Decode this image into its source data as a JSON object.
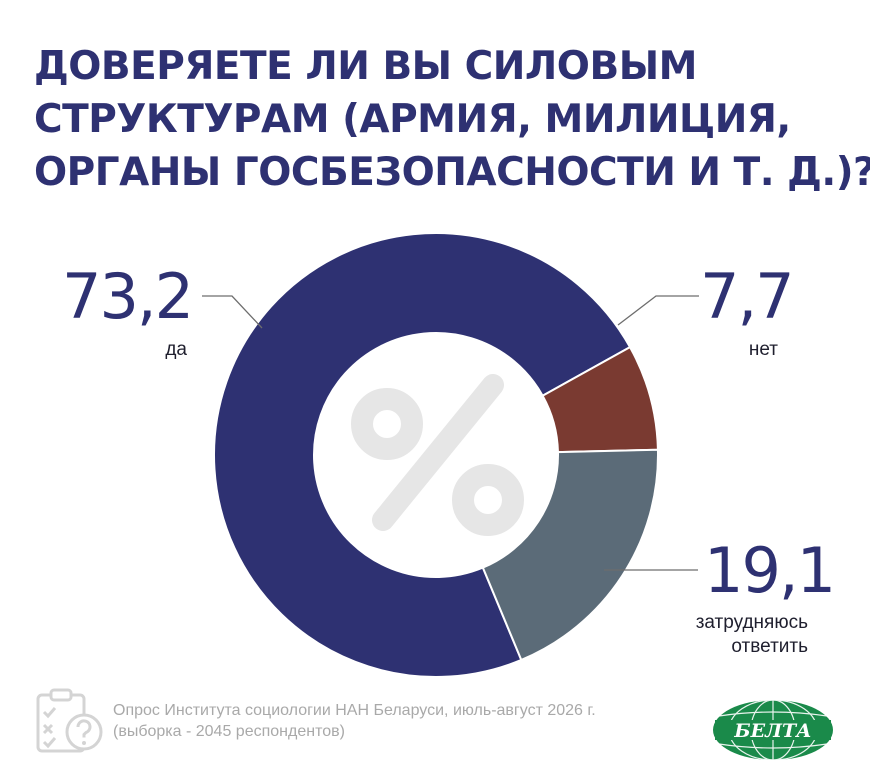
{
  "title_lines": [
    "ДОВЕРЯЕТЕ ЛИ ВЫ СИЛОВЫМ",
    "СТРУКТУРАМ (АРМИЯ, МИЛИЦИЯ,",
    "ОРГАНЫ ГОСБЕЗОПАСНОСТИ И Т. Д.)?"
  ],
  "center_symbol": "%",
  "chart_data": {
    "type": "pie",
    "title": "ДОВЕРЯЕТЕ ЛИ ВЫ СИЛОВЫМ СТРУКТУРАМ (АРМИЯ, МИЛИЦИЯ, ОРГАНЫ ГОСБЕЗОПАСНОСТИ И Т. Д.)?",
    "unit": "%",
    "slices": [
      {
        "label": "да",
        "value": 73.2,
        "display": "73,2",
        "color": "#2e3172"
      },
      {
        "label": "нет",
        "value": 7.7,
        "display": "7,7",
        "color": "#7a3a31"
      },
      {
        "label": "затрудняюсь ответить",
        "value": 19.1,
        "display": "19,1",
        "color": "#5b6b78",
        "label_lines": [
          "затрудняюсь",
          "ответить"
        ]
      }
    ]
  },
  "footer": {
    "lines": [
      "Опрос Института социологии НАН Беларуси, июль-август 2026 г.",
      "(выборка - 2045 респондентов)"
    ],
    "icon": "survey-clipboard-icon"
  },
  "logo": {
    "text": "БЕЛТА",
    "color": "#1a8a4a"
  }
}
